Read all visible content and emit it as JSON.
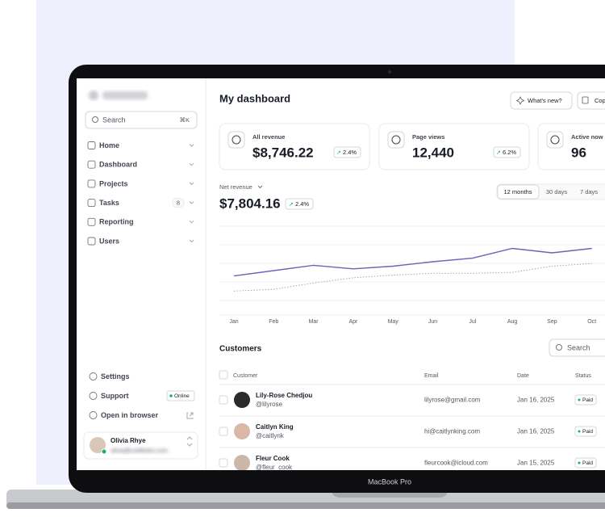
{
  "sidebar": {
    "search_placeholder": "Search",
    "search_shortcut": "⌘K",
    "nav": [
      {
        "label": "Home"
      },
      {
        "label": "Dashboard"
      },
      {
        "label": "Projects"
      },
      {
        "label": "Tasks",
        "badge": "8"
      },
      {
        "label": "Reporting"
      },
      {
        "label": "Users"
      }
    ],
    "footer_nav": [
      {
        "label": "Settings"
      },
      {
        "label": "Support",
        "badge": "Online"
      },
      {
        "label": "Open in browser"
      }
    ],
    "user": {
      "name": "Olivia Rhye",
      "email": "olivia@untitledui.com"
    }
  },
  "header": {
    "title": "My dashboard",
    "buttons": [
      "What's new?",
      "Copy"
    ]
  },
  "stats": [
    {
      "label": "All revenue",
      "value": "$8,746.22",
      "change": "2.4%"
    },
    {
      "label": "Page views",
      "value": "12,440",
      "change": "6.2%"
    },
    {
      "label": "Active now",
      "value": "96"
    }
  ],
  "net_revenue": {
    "label": "Net revenue",
    "value": "$7,804.16",
    "change": "2.4%",
    "periods": [
      "12 months",
      "30 days",
      "7 days"
    ],
    "chart": {
      "type": "line",
      "categories": [
        "Jan",
        "Feb",
        "Mar",
        "Apr",
        "May",
        "Jun",
        "Jul",
        "Aug",
        "Sep",
        "Oct"
      ],
      "series": [
        {
          "color": "#6e62b6",
          "values": [
            44,
            50,
            56,
            52,
            55,
            60,
            64,
            75,
            70,
            75
          ]
        },
        {
          "color": "#a4a7ae",
          "values": [
            27,
            29,
            36,
            42,
            45,
            47,
            47,
            48,
            55,
            58
          ]
        }
      ],
      "ylim": [
        0,
        100
      ]
    }
  },
  "customers": {
    "title": "Customers",
    "search_placeholder": "Search",
    "columns": [
      "Customer",
      "Email",
      "Date",
      "Status"
    ],
    "rows": [
      {
        "name": "Lily-Rose Chedjou",
        "handle": "@lilyrose",
        "email": "lilyrose@gmail.com",
        "date": "Jan 16, 2025",
        "status": "Paid"
      },
      {
        "name": "Caitlyn King",
        "handle": "@caitlynk",
        "email": "hi@caitlynking.com",
        "date": "Jan 16, 2025",
        "status": "Paid"
      },
      {
        "name": "Fleur Cook",
        "handle": "@fleur_cook",
        "email": "fleurcook@icloud.com",
        "date": "Jan 15, 2025",
        "status": "Paid"
      }
    ]
  },
  "device": {
    "label": "MacBook Pro"
  }
}
